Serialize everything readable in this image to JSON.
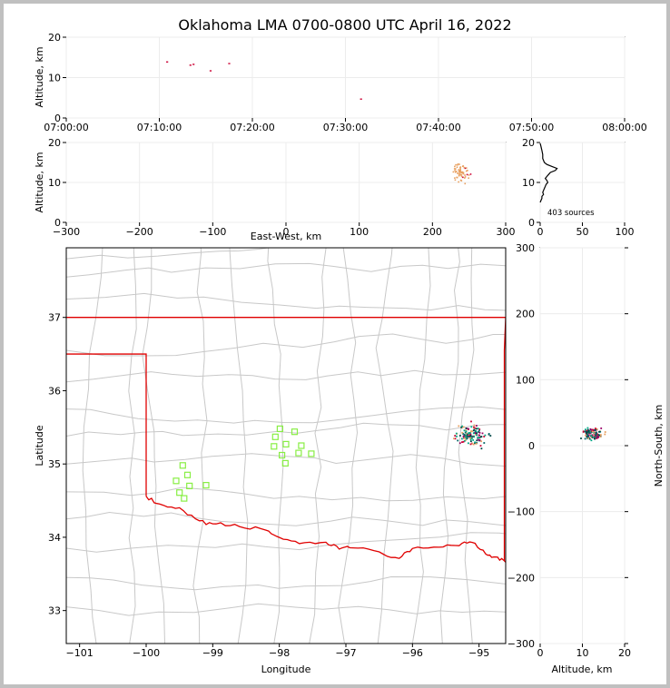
{
  "chart_data": [
    {
      "type": "scatter",
      "panel": "altitude-vs-time",
      "title": "Oklahoma LMA 0700-0800 UTC April 16, 2022",
      "ylabel": "Altitude, km",
      "xlim": [
        "07:00:00",
        "08:00:00"
      ],
      "ylim": [
        0,
        20
      ],
      "x_ticks": [
        "07:00:00",
        "07:10:00",
        "07:20:00",
        "07:30:00",
        "07:40:00",
        "07:50:00",
        "08:00:00"
      ],
      "y_ticks": [
        "0",
        "10",
        "20"
      ],
      "points": [
        {
          "t": "07:10:50",
          "alt": 13.9,
          "color": "#cc0033"
        },
        {
          "t": "07:13:20",
          "alt": 13.1,
          "color": "#cc0033"
        },
        {
          "t": "07:13:40",
          "alt": 13.3,
          "color": "#cc0033"
        },
        {
          "t": "07:15:30",
          "alt": 11.7,
          "color": "#cc0033"
        },
        {
          "t": "07:17:30",
          "alt": 13.5,
          "color": "#cc0033"
        },
        {
          "t": "07:31:40",
          "alt": 4.7,
          "color": "#cc0033"
        }
      ]
    },
    {
      "type": "scatter",
      "panel": "altitude-vs-east-west",
      "xlabel": "East-West, km",
      "ylabel": "Altitude, km",
      "xlim": [
        -300,
        300
      ],
      "ylim": [
        0,
        20
      ],
      "x_ticks": [
        "−300",
        "−200",
        "−100",
        "0",
        "100",
        "200",
        "300"
      ],
      "y_ticks": [
        "0",
        "10",
        "20"
      ],
      "cluster": {
        "x_center": 240,
        "x_spread": 18,
        "alt_center": 12.5,
        "alt_spread": 3,
        "count": 60,
        "color": "#e8a060"
      }
    },
    {
      "type": "line",
      "panel": "altitude-histogram",
      "annotation": "403 sources",
      "xlim": [
        0,
        100
      ],
      "ylim": [
        0,
        20
      ],
      "x_ticks": [
        "0",
        "50",
        "100"
      ],
      "y_ticks": [
        "0",
        "10",
        "20"
      ],
      "profile": [
        [
          0,
          19.8
        ],
        [
          1,
          19
        ],
        [
          2,
          18
        ],
        [
          3,
          17
        ],
        [
          3,
          16
        ],
        [
          5,
          15
        ],
        [
          8,
          14.5
        ],
        [
          14,
          14
        ],
        [
          20,
          13.5
        ],
        [
          18,
          13
        ],
        [
          12,
          12.5
        ],
        [
          10,
          12
        ],
        [
          8,
          11.5
        ],
        [
          6,
          11
        ],
        [
          8,
          10.5
        ],
        [
          9,
          10
        ],
        [
          7,
          9.5
        ],
        [
          6,
          9
        ],
        [
          5,
          8.5
        ],
        [
          4,
          8
        ],
        [
          3,
          7.5
        ],
        [
          4,
          7
        ],
        [
          2,
          6.5
        ],
        [
          2,
          6
        ],
        [
          1,
          5.5
        ],
        [
          0,
          5
        ]
      ]
    },
    {
      "type": "scatter",
      "panel": "plan-view",
      "xlabel": "Longitude",
      "ylabel": "Latitude",
      "xlim": [
        -101.2,
        -94.6
      ],
      "ylim": [
        32.55,
        37.95
      ],
      "x_ticks": [
        "−101",
        "−100",
        "−99",
        "−98",
        "−97",
        "−96",
        "−95"
      ],
      "y_ticks": [
        "33",
        "34",
        "35",
        "36",
        "37"
      ],
      "stations": [
        {
          "lon": -99.45,
          "lat": 34.98
        },
        {
          "lon": -99.38,
          "lat": 34.85
        },
        {
          "lon": -99.55,
          "lat": 34.77
        },
        {
          "lon": -99.35,
          "lat": 34.7
        },
        {
          "lon": -99.5,
          "lat": 34.61
        },
        {
          "lon": -99.43,
          "lat": 34.53
        },
        {
          "lon": -99.1,
          "lat": 34.71
        },
        {
          "lon": -97.99,
          "lat": 35.48
        },
        {
          "lon": -98.06,
          "lat": 35.37
        },
        {
          "lon": -98.08,
          "lat": 35.24
        },
        {
          "lon": -97.9,
          "lat": 35.27
        },
        {
          "lon": -97.77,
          "lat": 35.44
        },
        {
          "lon": -97.67,
          "lat": 35.25
        },
        {
          "lon": -97.96,
          "lat": 35.12
        },
        {
          "lon": -97.71,
          "lat": 35.15
        },
        {
          "lon": -97.91,
          "lat": 35.01
        },
        {
          "lon": -97.52,
          "lat": 35.14
        }
      ],
      "storm": {
        "lon_center": -95.12,
        "lon_spread": 0.35,
        "lat_center": 35.4,
        "lat_spread": 0.22,
        "count": 140
      },
      "colors": {
        "state_border": "#e00000",
        "county_lines": "#c8c8c8",
        "stations": "#88ee44"
      }
    },
    {
      "type": "scatter",
      "panel": "north-south-vs-altitude",
      "xlabel": "Altitude, km",
      "ylabel": "North-South, km",
      "xlim": [
        0,
        20
      ],
      "ylim": [
        -300,
        300
      ],
      "x_ticks": [
        "0",
        "10",
        "20"
      ],
      "y_ticks": [
        "−300",
        "−200",
        "−100",
        "0",
        "100",
        "200",
        "300"
      ],
      "cluster": {
        "alt_center": 12.5,
        "alt_spread": 3.5,
        "ns_center": 18,
        "ns_spread": 12,
        "count": 110
      }
    }
  ]
}
